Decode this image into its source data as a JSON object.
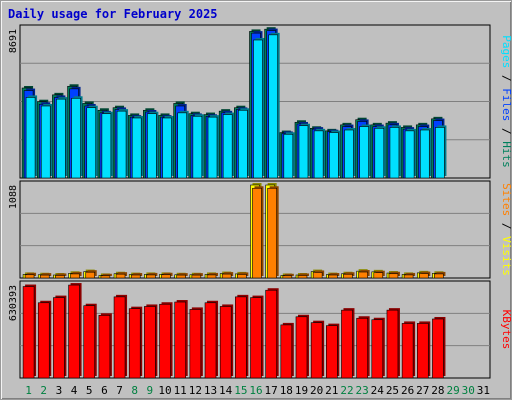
{
  "header": {
    "title": "Daily usage for February 2025"
  },
  "colors": {
    "panel_bg": "#c0c0c0",
    "hits": "#00805c",
    "files": "#0040ff",
    "pages": "#00e0ff",
    "visits": "#ffff00",
    "sites": "#ff8000",
    "kbytes": "#ff0000",
    "weekday_label": "#000000",
    "weekend_label": "#008040",
    "empty_day_label": "#008040"
  },
  "chart_data": [
    {
      "type": "bar",
      "panel": "hits-files-pages",
      "max_label": "8691",
      "ylim": [
        0,
        8691
      ],
      "legend": [
        "Pages",
        "Files",
        "Hits"
      ],
      "categories": [
        "1",
        "2",
        "3",
        "4",
        "5",
        "6",
        "7",
        "8",
        "9",
        "10",
        "11",
        "12",
        "13",
        "14",
        "15",
        "16",
        "17",
        "18",
        "19",
        "20",
        "21",
        "22",
        "23",
        "24",
        "25",
        "26",
        "27",
        "28",
        "29",
        "30",
        "31"
      ],
      "series": [
        {
          "name": "Hits",
          "values": [
            5250,
            4450,
            4850,
            5350,
            4350,
            3950,
            4100,
            3650,
            3950,
            3650,
            4350,
            3750,
            3700,
            3900,
            4100,
            8550,
            8680,
            2650,
            3250,
            2900,
            2750,
            3100,
            3400,
            3100,
            3200,
            2950,
            3100,
            3450,
            0,
            0,
            0
          ]
        },
        {
          "name": "Files",
          "values": [
            5100,
            4300,
            4700,
            5200,
            4200,
            3800,
            4000,
            3550,
            3850,
            3550,
            4200,
            3650,
            3600,
            3800,
            4000,
            8450,
            8600,
            2600,
            3150,
            2850,
            2700,
            3000,
            3300,
            3000,
            3100,
            2850,
            3000,
            3350,
            0,
            0,
            0
          ]
        },
        {
          "name": "Pages",
          "values": [
            4700,
            4200,
            4600,
            4650,
            4100,
            3750,
            3900,
            3500,
            3750,
            3500,
            3800,
            3600,
            3550,
            3700,
            3950,
            8050,
            8350,
            2550,
            3050,
            2750,
            2650,
            2800,
            3000,
            2900,
            2950,
            2750,
            2800,
            2950,
            0,
            0,
            0
          ]
        }
      ]
    },
    {
      "type": "bar",
      "panel": "sites-visits",
      "max_label": "1088",
      "ylim": [
        0,
        1088
      ],
      "legend": [
        "Sites",
        "Visits"
      ],
      "categories": [
        "1",
        "2",
        "3",
        "4",
        "5",
        "6",
        "7",
        "8",
        "9",
        "10",
        "11",
        "12",
        "13",
        "14",
        "15",
        "16",
        "17",
        "18",
        "19",
        "20",
        "21",
        "22",
        "23",
        "24",
        "25",
        "26",
        "27",
        "28",
        "29",
        "30",
        "31"
      ],
      "series": [
        {
          "name": "Visits",
          "values": [
            42,
            38,
            35,
            55,
            75,
            30,
            50,
            40,
            42,
            42,
            38,
            38,
            42,
            52,
            48,
            1088,
            1088,
            30,
            35,
            75,
            40,
            50,
            80,
            72,
            58,
            42,
            60,
            55,
            0,
            0,
            0
          ]
        },
        {
          "name": "Sites",
          "values": [
            38,
            34,
            30,
            48,
            68,
            26,
            45,
            35,
            36,
            38,
            34,
            34,
            36,
            46,
            42,
            1050,
            1050,
            26,
            30,
            65,
            35,
            44,
            70,
            62,
            50,
            36,
            52,
            48,
            0,
            0,
            0
          ]
        }
      ]
    },
    {
      "type": "bar",
      "panel": "kbytes",
      "max_label": "630393",
      "ylim": [
        0,
        630393
      ],
      "legend": [
        "KBytes"
      ],
      "categories": [
        "1",
        "2",
        "3",
        "4",
        "5",
        "6",
        "7",
        "8",
        "9",
        "10",
        "11",
        "12",
        "13",
        "14",
        "15",
        "16",
        "17",
        "18",
        "19",
        "20",
        "21",
        "22",
        "23",
        "24",
        "25",
        "26",
        "27",
        "28",
        "29",
        "30",
        "31"
      ],
      "series": [
        {
          "name": "KBytes",
          "values": [
            620000,
            510000,
            545000,
            630000,
            490000,
            425000,
            550000,
            470000,
            485000,
            500000,
            515000,
            465000,
            510000,
            485000,
            550000,
            545000,
            595000,
            360000,
            415000,
            375000,
            355000,
            460000,
            405000,
            395000,
            460000,
            370000,
            370000,
            400000,
            0,
            0,
            0
          ]
        }
      ]
    }
  ]
}
